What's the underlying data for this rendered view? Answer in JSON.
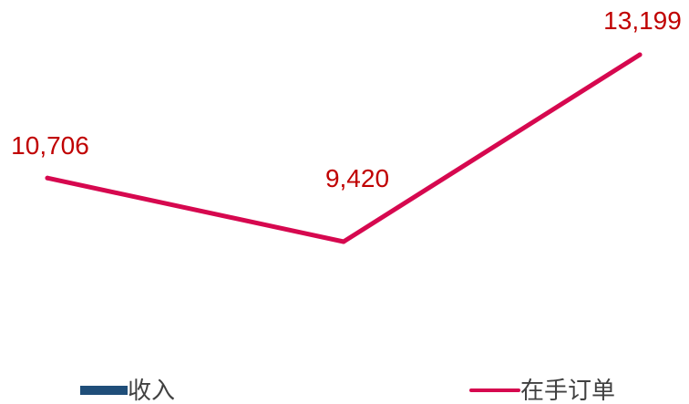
{
  "chart_data": {
    "type": "line",
    "title": "",
    "xlabel": "",
    "ylabel": "",
    "grid": false,
    "categories": [
      "",
      "",
      ""
    ],
    "series": [
      {
        "name": "在手订单",
        "color": "#d6084f",
        "values": [
          10706,
          9420,
          13199
        ],
        "data_labels": [
          "10,706",
          "9,420",
          "13,199"
        ],
        "label_color": "#c00000"
      }
    ],
    "legend": [
      {
        "label": "收入",
        "color": "#1f4e79",
        "marker": "rect"
      },
      {
        "label": "在手订单",
        "color": "#d6084f",
        "marker": "line"
      }
    ],
    "legend_position": "bottom"
  }
}
